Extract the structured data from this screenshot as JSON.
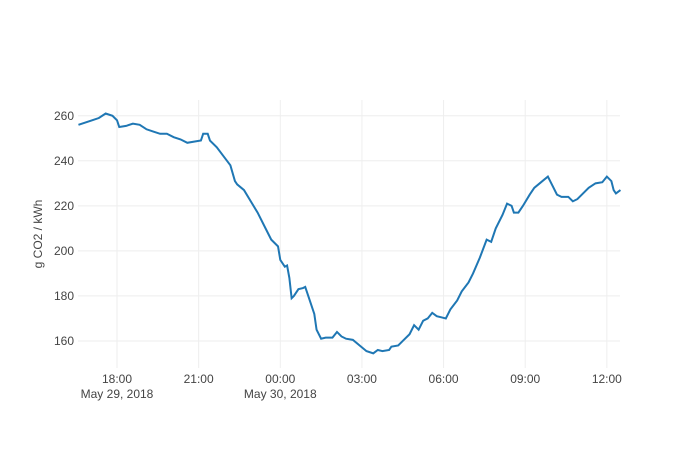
{
  "chart_data": {
    "type": "line",
    "ylabel": "g CO2 / kWh",
    "color": "#1f77b4",
    "grid": true,
    "x": [
      "2018-05-29T16:35",
      "2018-05-29T16:50",
      "2018-05-29T17:05",
      "2018-05-29T17:20",
      "2018-05-29T17:35",
      "2018-05-29T17:50",
      "2018-05-29T18:00",
      "2018-05-29T18:05",
      "2018-05-29T18:20",
      "2018-05-29T18:35",
      "2018-05-29T18:50",
      "2018-05-29T19:05",
      "2018-05-29T19:20",
      "2018-05-29T19:35",
      "2018-05-29T19:50",
      "2018-05-29T20:05",
      "2018-05-29T20:20",
      "2018-05-29T20:35",
      "2018-05-29T20:50",
      "2018-05-29T21:05",
      "2018-05-29T21:10",
      "2018-05-29T21:20",
      "2018-05-29T21:25",
      "2018-05-29T21:40",
      "2018-05-29T21:55",
      "2018-05-29T22:10",
      "2018-05-29T22:20",
      "2018-05-29T22:25",
      "2018-05-29T22:40",
      "2018-05-29T22:55",
      "2018-05-29T23:10",
      "2018-05-29T23:25",
      "2018-05-29T23:40",
      "2018-05-29T23:55",
      "2018-05-30T00:00",
      "2018-05-30T00:10",
      "2018-05-30T00:15",
      "2018-05-30T00:20",
      "2018-05-30T00:25",
      "2018-05-30T00:30",
      "2018-05-30T00:40",
      "2018-05-30T00:50",
      "2018-05-30T00:55",
      "2018-05-30T01:05",
      "2018-05-30T01:15",
      "2018-05-30T01:20",
      "2018-05-30T01:30",
      "2018-05-30T01:40",
      "2018-05-30T01:55",
      "2018-05-30T02:05",
      "2018-05-30T02:15",
      "2018-05-30T02:25",
      "2018-05-30T02:40",
      "2018-05-30T02:55",
      "2018-05-30T03:10",
      "2018-05-30T03:25",
      "2018-05-30T03:35",
      "2018-05-30T03:45",
      "2018-05-30T04:00",
      "2018-05-30T04:05",
      "2018-05-30T04:20",
      "2018-05-30T04:30",
      "2018-05-30T04:45",
      "2018-05-30T04:55",
      "2018-05-30T05:05",
      "2018-05-30T05:15",
      "2018-05-30T05:25",
      "2018-05-30T05:35",
      "2018-05-30T05:45",
      "2018-05-30T05:55",
      "2018-05-30T06:05",
      "2018-05-30T06:15",
      "2018-05-30T06:30",
      "2018-05-30T06:40",
      "2018-05-30T06:55",
      "2018-05-30T07:05",
      "2018-05-30T07:20",
      "2018-05-30T07:35",
      "2018-05-30T07:45",
      "2018-05-30T07:55",
      "2018-05-30T08:10",
      "2018-05-30T08:20",
      "2018-05-30T08:30",
      "2018-05-30T08:35",
      "2018-05-30T08:45",
      "2018-05-30T08:55",
      "2018-05-30T09:10",
      "2018-05-30T09:20",
      "2018-05-30T09:35",
      "2018-05-30T09:50",
      "2018-05-30T10:00",
      "2018-05-30T10:10",
      "2018-05-30T10:20",
      "2018-05-30T10:35",
      "2018-05-30T10:45",
      "2018-05-30T10:55",
      "2018-05-30T11:05",
      "2018-05-30T11:20",
      "2018-05-30T11:35",
      "2018-05-30T11:50",
      "2018-05-30T12:00",
      "2018-05-30T12:10",
      "2018-05-30T12:15",
      "2018-05-30T12:20",
      "2018-05-30T12:30"
    ],
    "values": [
      256,
      257,
      258,
      259,
      261,
      260,
      258,
      255,
      255.5,
      256.5,
      256,
      254,
      253,
      252,
      252,
      250.5,
      249.5,
      248,
      248.5,
      249,
      252,
      252,
      249,
      246,
      242,
      238,
      231,
      229.5,
      227,
      222,
      217,
      211,
      205,
      202,
      196,
      193,
      193.5,
      188,
      179,
      180,
      183,
      183.5,
      184,
      178,
      172,
      165,
      161,
      161.5,
      161.5,
      164,
      162,
      161,
      160.5,
      158,
      155.5,
      154.5,
      156,
      155.5,
      156,
      157.5,
      158,
      160,
      163,
      167,
      165,
      169,
      170,
      172.5,
      171,
      170.5,
      170,
      174,
      178,
      182,
      186,
      190,
      197,
      205,
      204,
      210,
      216,
      221,
      220,
      217,
      217,
      220,
      225,
      228,
      230.5,
      233,
      229,
      225,
      224,
      224,
      222,
      223,
      225,
      228,
      230,
      230.5,
      233,
      231,
      227,
      225.5,
      227
    ],
    "xlim": [
      "2018-05-29T16:34",
      "2018-05-30T12:29"
    ],
    "xticks": [
      {
        "value": "2018-05-29T18:00",
        "label": [
          "18:00",
          "May 29, 2018"
        ]
      },
      {
        "value": "2018-05-29T21:00",
        "label": [
          "21:00"
        ]
      },
      {
        "value": "2018-05-30T00:00",
        "label": [
          "00:00",
          "May 30, 2018"
        ]
      },
      {
        "value": "2018-05-30T03:00",
        "label": [
          "03:00"
        ]
      },
      {
        "value": "2018-05-30T06:00",
        "label": [
          "06:00"
        ]
      },
      {
        "value": "2018-05-30T09:00",
        "label": [
          "09:00"
        ]
      },
      {
        "value": "2018-05-30T12:00",
        "label": [
          "12:00"
        ]
      }
    ],
    "ylim": [
      148,
      267
    ],
    "yticks": [
      160,
      180,
      200,
      220,
      240,
      260
    ]
  }
}
